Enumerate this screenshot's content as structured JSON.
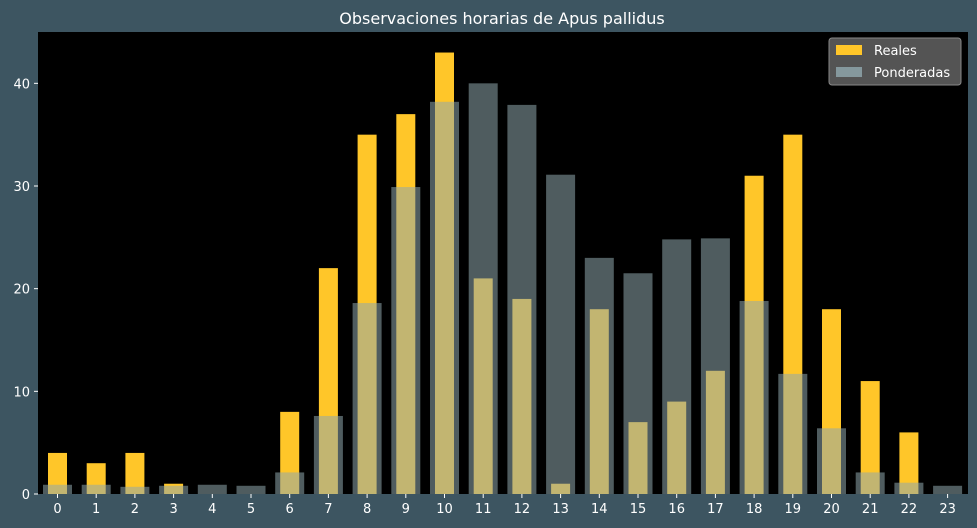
{
  "colors": {
    "figure_bg": "#3d5561",
    "plot_bg": "#000000",
    "real": "#ffc629",
    "weighted": "#90a7ad",
    "legend_bg": "#545454",
    "text": "#ffffff"
  },
  "chart_data": {
    "type": "bar",
    "title": "Observaciones horarias de Apus pallidus",
    "xlabel": "",
    "ylabel": "",
    "ylim": [
      0,
      45
    ],
    "yticks": [
      0,
      10,
      20,
      30,
      40
    ],
    "grid": false,
    "legend_position": "top-right",
    "categories": [
      "0",
      "1",
      "2",
      "3",
      "4",
      "5",
      "6",
      "7",
      "8",
      "9",
      "10",
      "11",
      "12",
      "13",
      "14",
      "15",
      "16",
      "17",
      "18",
      "19",
      "20",
      "21",
      "22",
      "23"
    ],
    "series": [
      {
        "name": "Reales",
        "values": [
          4,
          3,
          4,
          1,
          0,
          0,
          8,
          22,
          35,
          37,
          43,
          21,
          19,
          1,
          18,
          7,
          9,
          12,
          31,
          35,
          18,
          11,
          6,
          0
        ]
      },
      {
        "name": "Ponderadas",
        "values": [
          0.9,
          0.9,
          0.7,
          0.8,
          0.9,
          0.8,
          2.1,
          7.6,
          18.6,
          29.9,
          38.2,
          40.0,
          37.9,
          31.1,
          23.0,
          21.5,
          24.8,
          24.9,
          18.8,
          11.7,
          6.4,
          2.1,
          1.1,
          0.8
        ]
      }
    ]
  }
}
